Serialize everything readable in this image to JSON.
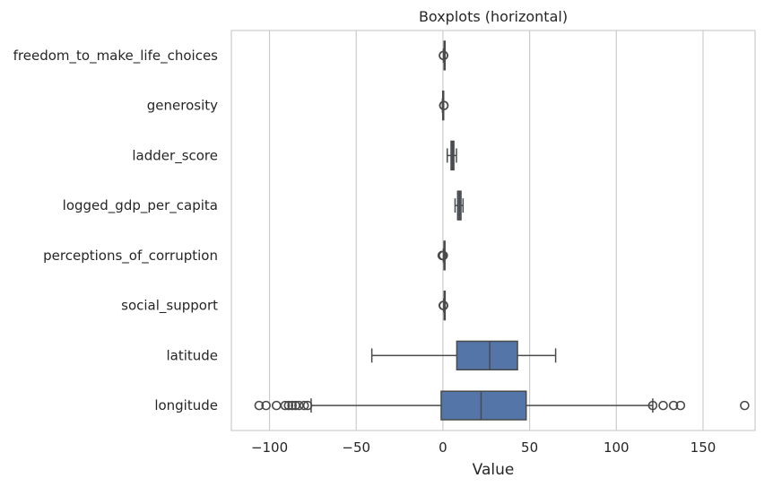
{
  "chart_data": {
    "type": "boxplot",
    "orientation": "horizontal",
    "title": "Boxplots (horizontal)",
    "xlabel": "Value",
    "ylabel": "",
    "xlim": [
      -122,
      180
    ],
    "xticks": [
      -100,
      -50,
      0,
      50,
      100,
      150
    ],
    "xtick_labels": [
      "−100",
      "−50",
      "0",
      "50",
      "100",
      "150"
    ],
    "grid": "vertical",
    "color": "#5475a8",
    "categories": [
      "freedom_to_make_life_choices",
      "generosity",
      "ladder_score",
      "logged_gdp_per_capita",
      "perceptions_of_corruption",
      "social_support",
      "latitude",
      "longitude"
    ],
    "series": [
      {
        "category": "freedom_to_make_life_choices",
        "whisker_low": 0.3,
        "q1": 0.7,
        "median": 0.78,
        "q3": 0.85,
        "whisker_high": 1.0,
        "outliers": [
          0.3,
          0.4
        ]
      },
      {
        "category": "generosity",
        "whisker_low": -0.3,
        "q1": -0.1,
        "median": 0.0,
        "q3": 0.1,
        "whisker_high": 0.4,
        "outliers": [
          0.5,
          0.6
        ]
      },
      {
        "category": "ladder_score",
        "whisker_low": 2.5,
        "q1": 4.7,
        "median": 5.5,
        "q3": 6.3,
        "whisker_high": 7.8,
        "outliers": []
      },
      {
        "category": "logged_gdp_per_capita",
        "whisker_low": 7.0,
        "q1": 8.5,
        "median": 9.5,
        "q3": 10.4,
        "whisker_high": 11.6,
        "outliers": []
      },
      {
        "category": "perceptions_of_corruption",
        "whisker_low": 0.3,
        "q1": 0.65,
        "median": 0.78,
        "q3": 0.85,
        "whisker_high": 0.95,
        "outliers": [
          -0.4,
          -0.2,
          0.1,
          0.2
        ]
      },
      {
        "category": "social_support",
        "whisker_low": 0.45,
        "q1": 0.75,
        "median": 0.83,
        "q3": 0.9,
        "whisker_high": 0.98,
        "outliers": [
          0.2,
          0.3,
          0.4
        ]
      },
      {
        "category": "latitude",
        "whisker_low": -41,
        "q1": 8,
        "median": 27,
        "q3": 43,
        "whisker_high": 65,
        "outliers": []
      },
      {
        "category": "longitude",
        "whisker_low": -76,
        "q1": -1,
        "median": 22,
        "q3": 48,
        "whisker_high": 121,
        "outliers": [
          -106,
          -102,
          -96,
          -91,
          -89,
          -87,
          -85,
          -83,
          -80,
          -78,
          121,
          127,
          133,
          137,
          174
        ]
      }
    ]
  }
}
